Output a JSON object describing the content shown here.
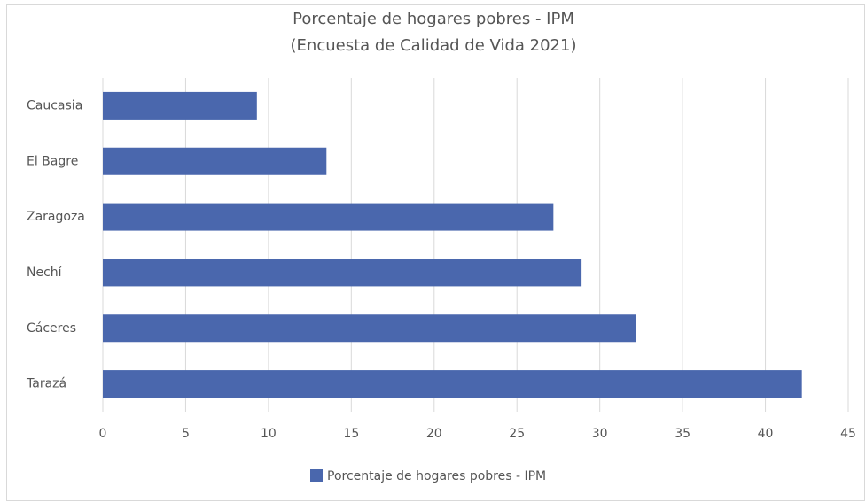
{
  "chart_data": {
    "type": "bar",
    "orientation": "horizontal",
    "title": "Porcentaje de hogares pobres - IPM",
    "subtitle": "(Encuesta de Calidad de Vida 2021)",
    "categories": [
      "Caucasia",
      "El Bagre",
      "Zaragoza",
      "Nechí",
      "Cáceres",
      "Tarazá"
    ],
    "series": [
      {
        "name": "Porcentaje de hogares pobres - IPM",
        "color": "#4a67ad",
        "values": [
          9.3,
          13.5,
          27.2,
          28.9,
          32.2,
          42.2
        ]
      }
    ],
    "xlim": [
      0,
      45
    ],
    "xticks": [
      0,
      5,
      10,
      15,
      20,
      25,
      30,
      35,
      40,
      45
    ],
    "grid": true,
    "legend": "bottom"
  }
}
